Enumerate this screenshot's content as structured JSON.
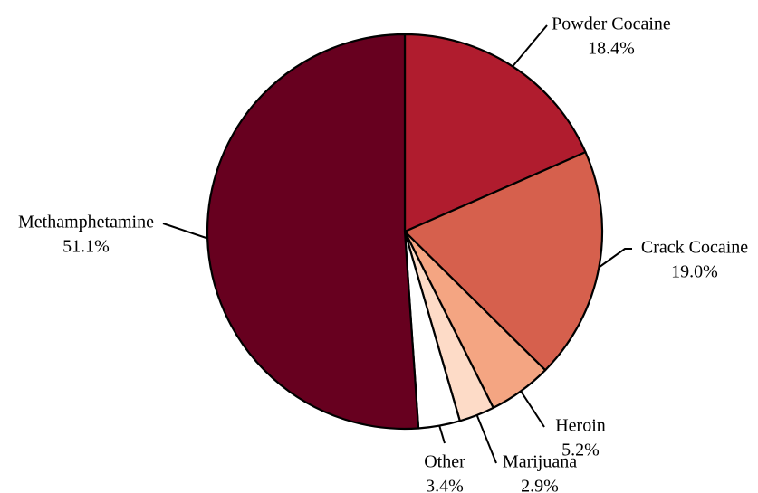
{
  "chart_data": {
    "type": "pie",
    "title": "",
    "start_angle_deg": 0,
    "direction": "clockwise",
    "slices": [
      {
        "label": "Powder Cocaine",
        "value": 18.4,
        "value_label": "18.4%",
        "color": "#b01c2e"
      },
      {
        "label": "Crack Cocaine",
        "value": 19.0,
        "value_label": "19.0%",
        "color": "#d6604d"
      },
      {
        "label": "Heroin",
        "value": 5.2,
        "value_label": "5.2%",
        "color": "#f4a582"
      },
      {
        "label": "Marijuana",
        "value": 2.9,
        "value_label": "2.9%",
        "color": "#fddbc7"
      },
      {
        "label": "Other",
        "value": 3.4,
        "value_label": "3.4%",
        "color": "#ffffff"
      },
      {
        "label": "Methamphetamine",
        "value": 51.1,
        "value_label": "51.1%",
        "color": "#67001f"
      }
    ]
  }
}
